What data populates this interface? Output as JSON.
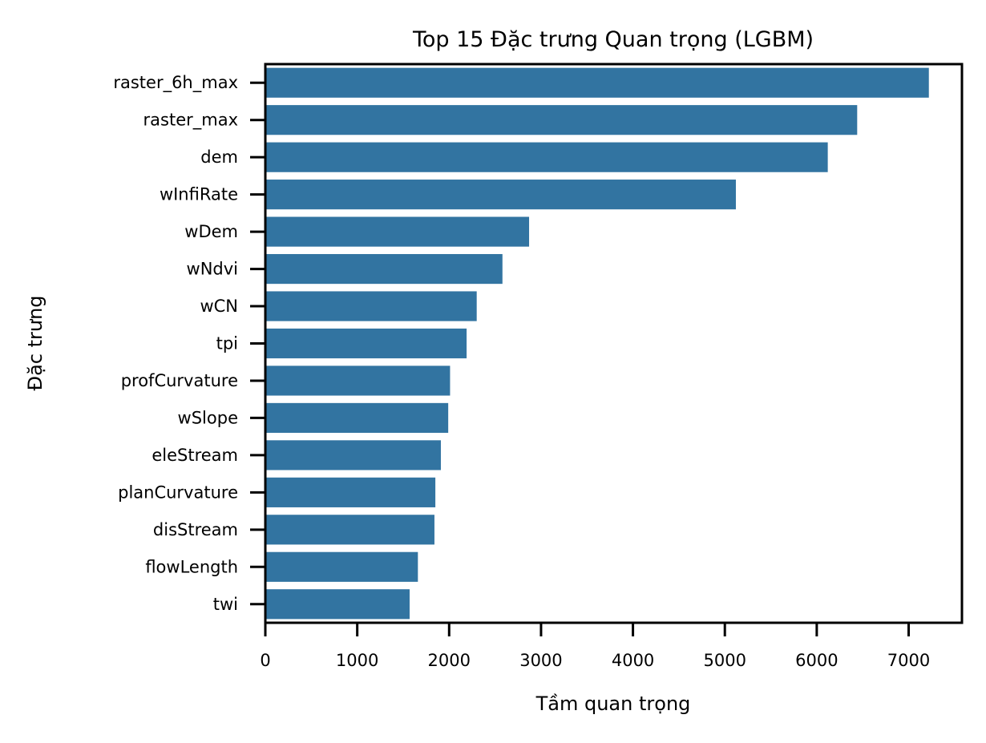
{
  "chart_data": {
    "type": "bar",
    "orientation": "horizontal",
    "title": "Top 15 Đặc trưng Quan trọng (LGBM)",
    "xlabel": "Tầm quan trọng",
    "ylabel": "Đặc trưng",
    "categories": [
      "raster_6h_max",
      "raster_max",
      "dem",
      "wInfiRate",
      "wDem",
      "wNdvi",
      "wCN",
      "tpi",
      "profCurvature",
      "wSlope",
      "eleStream",
      "planCurvature",
      "disStream",
      "flowLength",
      "twi"
    ],
    "values": [
      7220,
      6440,
      6120,
      5120,
      2870,
      2580,
      2300,
      2190,
      2010,
      1990,
      1910,
      1850,
      1840,
      1660,
      1570
    ],
    "xlim": [
      0,
      7580
    ],
    "xticks": [
      0,
      1000,
      2000,
      3000,
      4000,
      5000,
      6000,
      7000
    ],
    "grid": false,
    "color": "#3274a1"
  }
}
